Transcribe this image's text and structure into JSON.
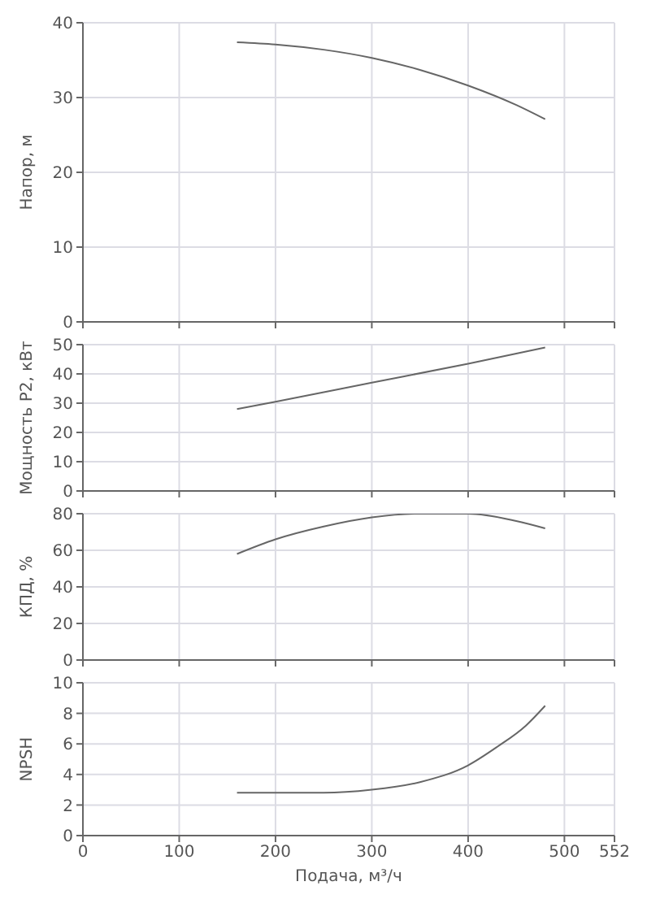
{
  "chart_data": [
    {
      "type": "line",
      "ylabel": "Напор, м",
      "x": [
        160,
        200,
        250,
        300,
        350,
        400,
        450,
        480
      ],
      "series": [
        {
          "color": "#666666",
          "values": [
            37.4,
            37.1,
            36.4,
            35.3,
            33.7,
            31.6,
            29.0,
            27.1
          ]
        }
      ],
      "xlim": [
        0,
        552
      ],
      "xticks": [
        0,
        100,
        200,
        300,
        400,
        500,
        552
      ],
      "ylim": [
        0,
        40
      ],
      "yticks": [
        0,
        10,
        20,
        30,
        40
      ],
      "grid": true,
      "tick_labels": "y"
    },
    {
      "type": "line",
      "ylabel": "Мощность P2, кВт",
      "x": [
        160,
        200,
        300,
        400,
        480
      ],
      "series": [
        {
          "color": "#666666",
          "values": [
            28,
            30.5,
            37,
            43.5,
            49
          ]
        }
      ],
      "xlim": [
        0,
        552
      ],
      "xticks": [
        0,
        100,
        200,
        300,
        400,
        500,
        552
      ],
      "ylim": [
        0,
        50
      ],
      "yticks": [
        0,
        10,
        20,
        30,
        40,
        50
      ],
      "grid": true,
      "tick_labels": "y"
    },
    {
      "type": "line",
      "ylabel": "КПД, %",
      "x": [
        160,
        200,
        250,
        300,
        350,
        400,
        450,
        480
      ],
      "series": [
        {
          "color": "#666666",
          "values": [
            58,
            66,
            73,
            78,
            80,
            80,
            76,
            72
          ]
        }
      ],
      "xlim": [
        0,
        552
      ],
      "xticks": [
        0,
        100,
        200,
        300,
        400,
        500,
        552
      ],
      "ylim": [
        0,
        80
      ],
      "yticks": [
        0,
        20,
        40,
        60,
        80
      ],
      "grid": true,
      "tick_labels": "y"
    },
    {
      "type": "line",
      "ylabel": "NPSH",
      "xlabel": "Подача, м³/ч",
      "x": [
        160,
        200,
        250,
        300,
        350,
        400,
        430,
        460,
        480
      ],
      "series": [
        {
          "color": "#666666",
          "values": [
            2.8,
            2.8,
            2.8,
            3.0,
            3.5,
            4.6,
            5.8,
            7.2,
            8.5
          ]
        }
      ],
      "xlim": [
        0,
        552
      ],
      "xticks": [
        0,
        100,
        200,
        300,
        400,
        500,
        552
      ],
      "ylim": [
        0,
        10
      ],
      "yticks": [
        0,
        2,
        4,
        6,
        8,
        10
      ],
      "grid": true
    }
  ]
}
